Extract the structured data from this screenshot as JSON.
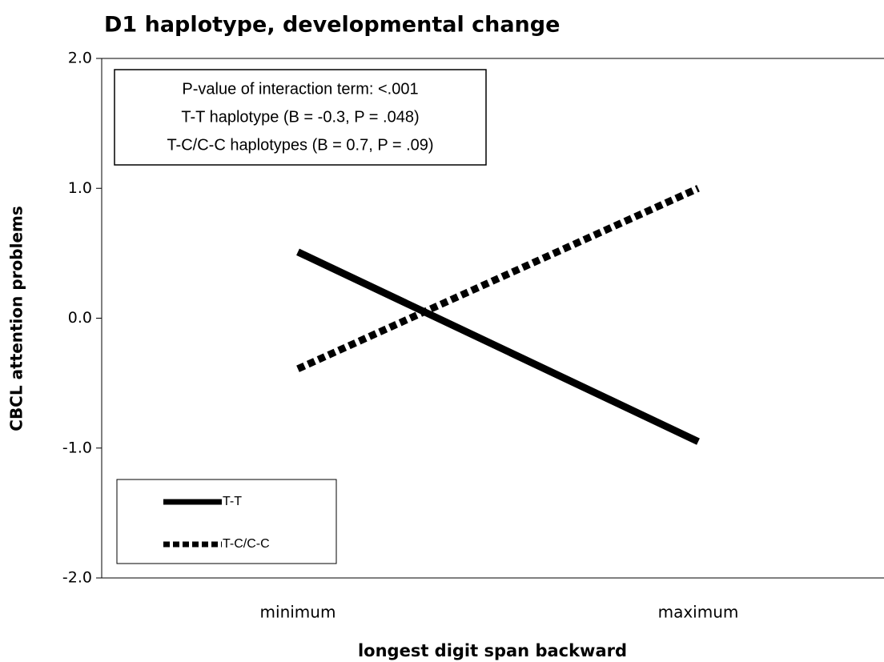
{
  "chart_data": {
    "type": "line",
    "title": "D1 haplotype, developmental change",
    "xlabel": "longest digit span backward",
    "ylabel": "CBCL attention problems",
    "categories": [
      "minimum",
      "maximum"
    ],
    "series": [
      {
        "name": "T-T",
        "color": "#000000",
        "style": "solid",
        "values": [
          0.51,
          -0.95
        ]
      },
      {
        "name": "T-C/C-C",
        "color": "#000000",
        "style": "dashed",
        "values": [
          -0.39,
          1.0
        ]
      }
    ],
    "ylim": [
      -2,
      2
    ],
    "yticks": [
      {
        "value": 2,
        "label": "2.0"
      },
      {
        "value": 1,
        "label": "1.0"
      },
      {
        "value": 0,
        "label": "0.0"
      },
      {
        "value": -1,
        "label": "-1.0"
      },
      {
        "value": -2,
        "label": "-2.0"
      }
    ],
    "annotations": [
      "P-value of interaction term: <.001",
      "T-T haplotype (B = -0.3, P = .048)",
      "T-C/C-C haplotypes (B = 0.7, P = .09)"
    ],
    "legend": "lower left"
  }
}
